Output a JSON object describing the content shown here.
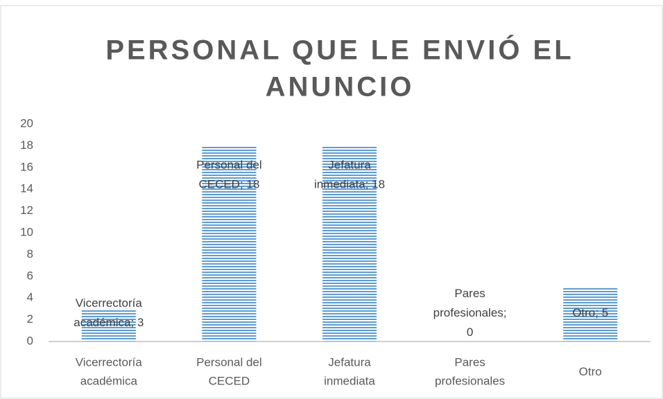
{
  "chart_data": {
    "type": "bar",
    "title": "PERSONAL QUE LE ENVIÓ EL ANUNCIO",
    "categories": [
      "Vicerrectoría académica",
      "Personal del CECED",
      "Jefatura inmediata",
      "Pares profesionales",
      "Otro"
    ],
    "values": [
      3,
      18,
      18,
      0,
      5
    ],
    "value_labels": [
      "Vicerrectoría académica; 3",
      "Personal del CECED; 18",
      "Jefatura inmediata; 18",
      "Pares profesionales; 0",
      "Otro; 5"
    ],
    "color": "#5b9bd5",
    "ylim": [
      0,
      20
    ],
    "yticks": [
      0,
      2,
      4,
      6,
      8,
      10,
      12,
      14,
      16,
      18,
      20
    ],
    "grid": false
  }
}
